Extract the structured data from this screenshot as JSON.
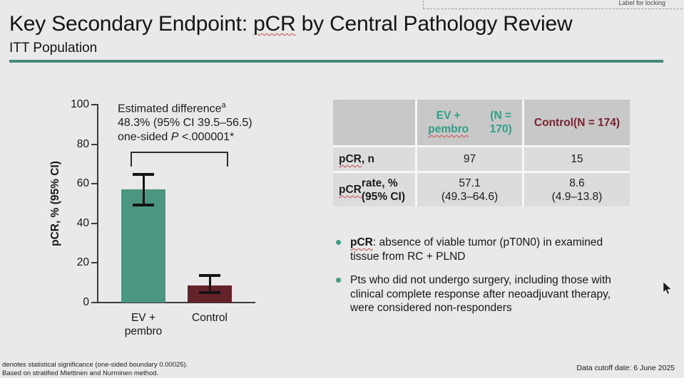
{
  "colors": {
    "accent_teal": "#47897C",
    "bar_green": "#4A9681",
    "bar_maroon": "#662229",
    "header_teal": "#2F9E86",
    "header_maroon": "#77222D",
    "bullet_teal": "#3F9E85"
  },
  "slide": {
    "title": "Key Secondary Endpoint: pCR by Central Pathology Review",
    "title_segments": [
      {
        "t": "Key Secondary Endpoint: "
      },
      {
        "t": "pCR",
        "squiggle": true
      },
      {
        "t": " by Central Pathology Review"
      }
    ],
    "subtitle": "ITT Population",
    "label_for_locking": "Label for locking",
    "footnote_line1": "denotes statistical significance (one-sided boundary 0.00025).",
    "footnote_line2": "Based on stratified Miettinen and Nurminen method.",
    "data_cutoff": "Data cutoff date: 6 June 2025"
  },
  "chart_data": {
    "type": "bar",
    "title": "",
    "xlabel": "",
    "ylabel": "pCR, % (95% CI)",
    "ylim": [
      0,
      100
    ],
    "yticks": [
      0,
      20,
      40,
      60,
      80,
      100
    ],
    "grid": false,
    "legend": false,
    "categories": [
      "EV +\npembro",
      "Control"
    ],
    "series": [
      {
        "name": "pCR rate, %",
        "values": [
          57.1,
          8.6
        ],
        "ci_low": [
          49.3,
          4.9
        ],
        "ci_high": [
          64.6,
          13.8
        ],
        "colors": [
          "#4A9681",
          "#662229"
        ]
      }
    ],
    "annotation_lines": [
      [
        {
          "t": "Estimated difference"
        },
        {
          "t": "a",
          "sup": true
        }
      ],
      [
        {
          "t": "48.3% (95% CI 39.5–56.5)"
        }
      ],
      [
        {
          "t": "one-sided "
        },
        {
          "t": "P",
          "italic": true
        },
        {
          "t": " <.000001*"
        }
      ]
    ]
  },
  "table": {
    "header_cols": [
      {
        "color": "#2F9E86",
        "lines": [
          [
            {
              "t": "EV + "
            },
            {
              "t": "pembro",
              "squiggle": true
            }
          ],
          [
            {
              "t": "(N = 170)"
            }
          ]
        ]
      },
      {
        "color": "#77222D",
        "lines": [
          [
            {
              "t": "Control"
            }
          ],
          [
            {
              "t": "(N = 174)"
            }
          ]
        ]
      }
    ],
    "rows": [
      {
        "label": [
          {
            "t": "pCR",
            "squiggle": true
          },
          {
            "t": ", n"
          }
        ],
        "cells": [
          "97",
          "15"
        ]
      },
      {
        "label": [
          {
            "t": "pCR",
            "squiggle": true
          },
          {
            "t": " rate, %\n(95% CI)"
          }
        ],
        "cells": [
          "57.1\n(49.3–64.6)",
          "8.6\n(4.9–13.8)"
        ]
      }
    ]
  },
  "bullets": [
    {
      "segments": [
        {
          "t": "pCR",
          "bold": true,
          "squiggle": true
        },
        {
          "t": ": absence of viable tumor (pT0N0) in examined\ntissue from RC + PLND"
        }
      ]
    },
    {
      "segments": [
        {
          "t": "Pts who did not undergo surgery, including those with\nclinical complete response after neoadjuvant therapy,\nwere considered non-responders"
        }
      ]
    }
  ]
}
